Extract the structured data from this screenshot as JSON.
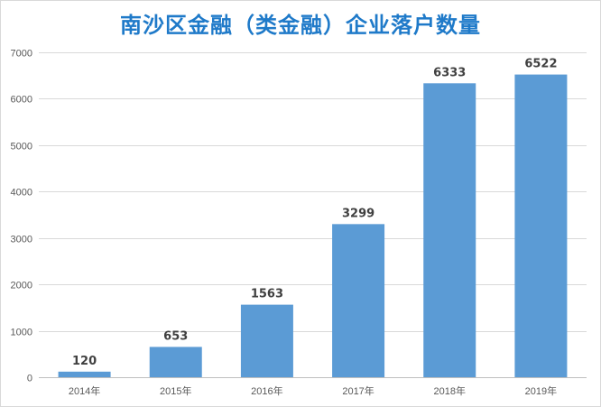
{
  "chart_data": {
    "type": "bar",
    "title": "南沙区金融（类金融）企业落户数量",
    "categories": [
      "2014年",
      "2015年",
      "2016年",
      "2017年",
      "2018年",
      "2019年"
    ],
    "values": [
      120,
      653,
      1563,
      3299,
      6333,
      6522
    ],
    "data_labels": [
      "120",
      "653",
      "1563",
      "3299",
      "6333",
      "6522"
    ],
    "ylim": [
      0,
      7000
    ],
    "yticks": [
      0,
      1000,
      2000,
      3000,
      4000,
      5000,
      6000,
      7000
    ],
    "ytick_labels": [
      "0",
      "1000",
      "2000",
      "3000",
      "4000",
      "5000",
      "6000",
      "7000"
    ],
    "grid": true,
    "legend": "none",
    "xlabel": "",
    "ylabel": "",
    "colors": {
      "bar": "#5b9bd5",
      "grid": "#d9d9d9",
      "title": "#1f7ac9",
      "label": "#404040"
    }
  }
}
